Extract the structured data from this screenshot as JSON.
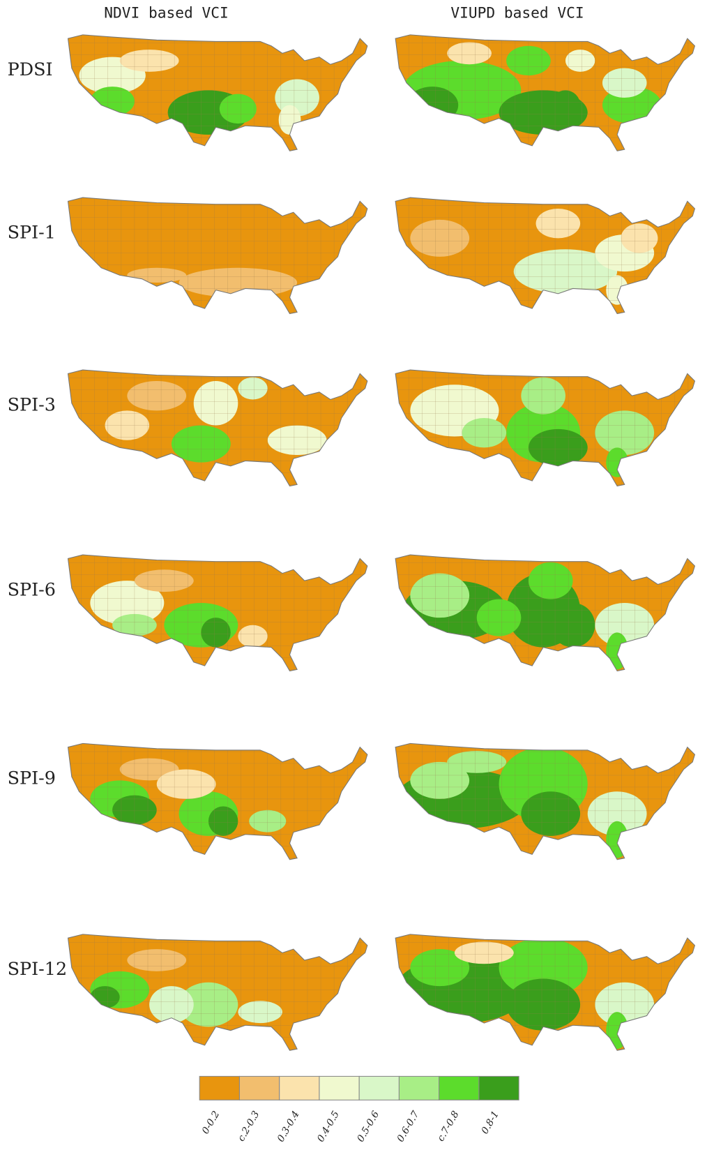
{
  "columns": [
    "NDVI based VCI",
    "VIUPD based VCI"
  ],
  "rows": [
    "PDSI",
    "SPI-1",
    "SPI-3",
    "SPI-6",
    "SPI-9",
    "SPI-12"
  ],
  "legend": {
    "labels": [
      "0-0.2",
      "c.2-0.3",
      "0.3-0.4",
      "0.4-0.5",
      "0.5-0.6",
      "0.6-0.7",
      "c.7-0.8",
      "0.8-1"
    ],
    "colors": [
      "#e8950e",
      "#f2be6e",
      "#fbe3ad",
      "#f0f9cf",
      "#d9f7c8",
      "#a8ee86",
      "#5cdc2c",
      "#3a9e1c"
    ]
  }
}
